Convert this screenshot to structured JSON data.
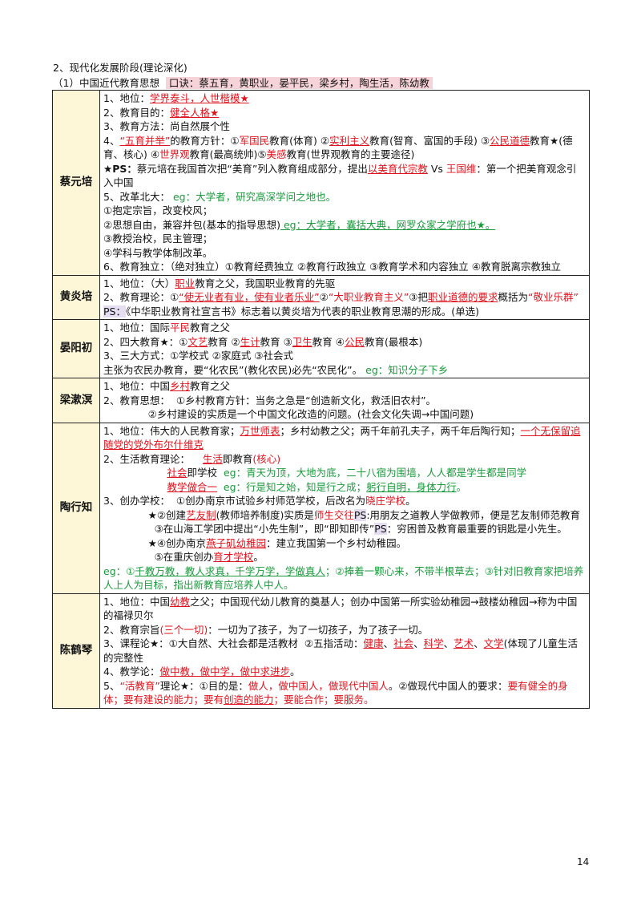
{
  "heading": "2、现代化发展阶段(理论深化)",
  "subheading": {
    "prefix": "（1）中国近代教育思想  ",
    "mnemonic": "口诀：蔡五育，黄职业，晏平民，梁乡村，陶生活，陈幼教"
  },
  "table": {
    "rows": [
      {
        "name": "蔡元培",
        "lines": [
          [
            {
              "text": "1、地位："
            },
            {
              "text": "学界泰斗，人世楷模★",
              "style": "ru"
            }
          ],
          [
            {
              "text": "2、教育目的："
            },
            {
              "text": "健全人格★",
              "style": "ru"
            }
          ],
          [
            {
              "text": "3、教育方法：尚自然展个性"
            }
          ],
          [
            {
              "text": "4、"
            },
            {
              "text": "“五育并举”",
              "style": "ru"
            },
            {
              "text": "的教育方针：①"
            },
            {
              "text": "军国民",
              "style": "r"
            },
            {
              "text": "教育(体育) ②"
            },
            {
              "text": "实利主义",
              "style": "ru"
            },
            {
              "text": "教育(智育、富国的手段) ③"
            },
            {
              "text": "公民道德",
              "style": "ru"
            },
            {
              "text": "教育★(德育、核心) ④"
            },
            {
              "text": "世界观",
              "style": "r"
            },
            {
              "text": "教育(最高统帅)⑤"
            },
            {
              "text": "美感",
              "style": "r"
            },
            {
              "text": "教育(世界观教育的主要途径)"
            }
          ],
          [
            {
              "text": "★PS：",
              "style": "b"
            },
            {
              "text": "蔡元培在我国首次把“美育”列入教育组成部分，提出"
            },
            {
              "text": "以美育代宗教",
              "style": "ru"
            },
            {
              "text": " Vs "
            },
            {
              "text": "王国维",
              "style": "r"
            },
            {
              "text": "：第一个把美育观念引入中国"
            }
          ],
          [
            {
              "text": "5、改革北大："
            },
            {
              "text": " eg：大学者，研究高深学问之地也。",
              "style": "g"
            }
          ],
          [
            {
              "text": "①抱定宗旨，改变校风；"
            }
          ],
          [
            {
              "text": "②思想自由，兼容并包(基本的指导思想)"
            },
            {
              "text": " eg：大学者，囊括大典，网罗众家之学府也★。",
              "style": "gu"
            }
          ],
          [
            {
              "text": "③教授治校，民主管理；"
            }
          ],
          [
            {
              "text": "④学科与教学体制改革。"
            }
          ],
          [
            {
              "text": "6、教育独立：（绝对独立）①教育经费独立 ②教育行政独立 ③教育学术和内容独立 ④教育脱离宗教独立"
            }
          ]
        ]
      },
      {
        "name": "黄炎培",
        "lines": [
          [
            {
              "text": "1、地位：（大）"
            },
            {
              "text": "职业",
              "style": "ru"
            },
            {
              "text": "教育之父，我国职业教育的先驱"
            }
          ],
          [
            {
              "text": "2、教育理论：①"
            },
            {
              "text": "“使无业者有业，使有业者乐业”",
              "style": "ru"
            },
            {
              "text": "②"
            },
            {
              "text": "“大职业教育主义”",
              "style": "r"
            },
            {
              "text": "③把"
            },
            {
              "text": "职业道德的要求",
              "style": "ru"
            },
            {
              "text": "概括为"
            },
            {
              "text": "“敬业乐群”",
              "style": "r"
            }
          ],
          [
            {
              "text": "PS：",
              "style": "hl"
            },
            {
              "text": "《中华职业教育社宣言书》标志着以黄炎培为代表的职业教育思潮的形成。(单选)"
            }
          ]
        ]
      },
      {
        "name": "晏阳初",
        "lines": [
          [
            {
              "text": "1、地位：国际"
            },
            {
              "text": "平民",
              "style": "r"
            },
            {
              "text": "教育之父"
            }
          ],
          [
            {
              "text": "2、四大教育★：①"
            },
            {
              "text": "文艺",
              "style": "ru"
            },
            {
              "text": "教育 ②"
            },
            {
              "text": "生计",
              "style": "ru"
            },
            {
              "text": "教育 ③"
            },
            {
              "text": "卫生",
              "style": "ru"
            },
            {
              "text": "教育 ④"
            },
            {
              "text": "公民",
              "style": "ru"
            },
            {
              "text": "教育(最根本)"
            }
          ],
          [
            {
              "text": "3、三大方式：①学校式 ②家庭式 ③社会式"
            }
          ],
          [
            {
              "text": "主张为农民办教育，要“化农民”(教化农民)必先“农民化”。"
            },
            {
              "text": " eg：知识分子下乡",
              "style": "g"
            }
          ]
        ]
      },
      {
        "name": "梁漱溟",
        "lines": [
          [
            {
              "text": "1、地位：中国"
            },
            {
              "text": "乡村",
              "style": "ru"
            },
            {
              "text": "教育之父"
            }
          ],
          [
            {
              "text": "2、教育思想：  ①乡村教育方针：当务之急是“创造新文化，救活旧农村”。"
            }
          ],
          [
            {
              "text": "              ②乡村建设的实质是一个中国文化改造的问题。(社会文化失调→中国问题)"
            }
          ]
        ]
      },
      {
        "name": "陶行知",
        "lines": [
          [
            {
              "text": "1、地位：伟大的人民教育家；"
            },
            {
              "text": "万世师表",
              "style": "ru"
            },
            {
              "text": "；乡村幼教之父；两千年前孔夫子，两千年后陶行知；"
            },
            {
              "text": "一个无保留追随党的党外布尔什维克",
              "style": "ru"
            }
          ],
          [
            {
              "text": "2、生活教育理论：    "
            },
            {
              "text": "生活",
              "style": "ru"
            },
            {
              "text": "即教育"
            },
            {
              "text": "(核心)",
              "style": "r"
            }
          ],
          [
            {
              "text": "                    "
            },
            {
              "text": "社会",
              "style": "ru"
            },
            {
              "text": "即学校  "
            },
            {
              "text": "eg：青天为顶，大地为底，二十八宿为围墙，人人都是学生都是同学",
              "style": "g"
            }
          ],
          [
            {
              "text": "                    "
            },
            {
              "text": "教学做合一",
              "style": "ru"
            },
            {
              "text": "  eg：行是知之始，知是行之成；",
              "style": "g"
            },
            {
              "text": "躬行自明，身体力行",
              "style": "gu"
            },
            {
              "text": "。",
              "style": "g"
            }
          ],
          [
            {
              "text": "3、创办学校：  ①创办南京市试验乡村师范学校，后改名为"
            },
            {
              "text": "晓庄学校",
              "style": "r"
            },
            {
              "text": "。"
            }
          ],
          [
            {
              "text": "              ★②创建"
            },
            {
              "text": "艺友制",
              "style": "ru"
            },
            {
              "text": "(教师培养制度)实质是"
            },
            {
              "text": "师生交往",
              "style": "r"
            },
            {
              "text": "PS",
              "style": "hl"
            },
            {
              "text": ":用朋友之道教人学做教师，便是艺友制师范教育"
            }
          ],
          [
            {
              "text": "                ③在山海工学团中提出“小先生制”，即“即知即传”"
            },
            {
              "text": "PS",
              "style": "hl"
            },
            {
              "text": "：穷困普及教育最重要的钥匙是小先生。"
            }
          ],
          [
            {
              "text": "              ★④创办南京"
            },
            {
              "text": "燕子矶幼稚园",
              "style": "ru"
            },
            {
              "text": "：建立我国第一个乡村幼稚园。"
            }
          ],
          [
            {
              "text": "                ⑤在重庆创办"
            },
            {
              "text": "育才学校",
              "style": "ru"
            },
            {
              "text": "。"
            }
          ],
          [
            {
              "text": "eg：①",
              "style": "g"
            },
            {
              "text": "千教万教，教人求真，千学万学，学做真人",
              "style": "gu"
            },
            {
              "text": "；②捧着一颗心来，不带半根草去；③针对旧教育家把培养人上人为目标，指出新教育应培养人中人。",
              "style": "g"
            }
          ]
        ]
      },
      {
        "name": "陈鹤琴",
        "lines": [
          [
            {
              "text": "1、地位：中国"
            },
            {
              "text": "幼教",
              "style": "ru"
            },
            {
              "text": "之父；中国现代幼儿教育的奠基人；创办中国第一所实验幼稚园→鼓楼幼稚园→称为中国的福禄贝尔"
            }
          ],
          [
            {
              "text": "2、教育宗旨"
            },
            {
              "text": "(三个一切)",
              "style": "r"
            },
            {
              "text": "：一切为了孩子，为了一切孩子，为了孩子一切。"
            }
          ],
          [
            {
              "text": "3、课程论★：①大自然、大社会都是活教材  ②五指活动："
            },
            {
              "text": "健康",
              "style": "ru"
            },
            {
              "text": "、"
            },
            {
              "text": "社会",
              "style": "ru"
            },
            {
              "text": "、"
            },
            {
              "text": "科学",
              "style": "ru"
            },
            {
              "text": "、"
            },
            {
              "text": "艺术",
              "style": "ru"
            },
            {
              "text": "、"
            },
            {
              "text": "文学",
              "style": "ru"
            },
            {
              "text": "(体现了儿童生活的完整性"
            }
          ],
          [
            {
              "text": "4、教学论："
            },
            {
              "text": "做中教，做中学，做中求进步",
              "style": "ru"
            },
            {
              "text": "。"
            }
          ],
          [
            {
              "text": "5、"
            },
            {
              "text": "“活教育”",
              "style": "r"
            },
            {
              "text": "理论★：①目的是："
            },
            {
              "text": "做人，做中国人，做现代中国人",
              "style": "r"
            },
            {
              "text": "。②做现代中国人的要求："
            },
            {
              "text": "要有健全的身体；要有建设的能力；要有",
              "style": "r"
            },
            {
              "text": "创造的能力",
              "style": "ru"
            },
            {
              "text": "；要能合作；要服务。",
              "style": "r"
            }
          ]
        ]
      }
    ]
  },
  "page_number": "14"
}
